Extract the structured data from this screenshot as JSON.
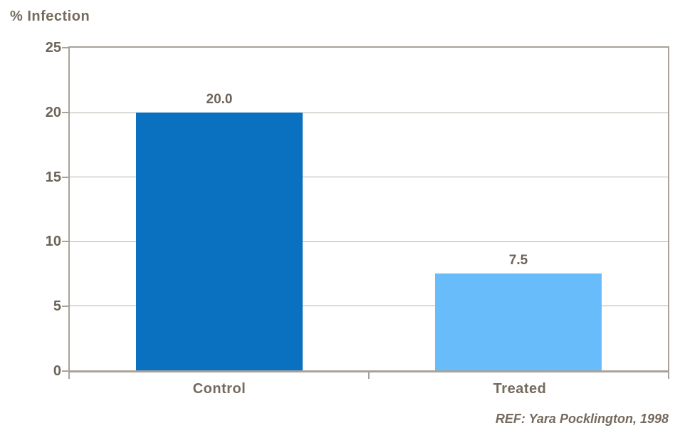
{
  "title": "% Infection",
  "footer": {
    "ref_label": "REF: Yara Pocklington, 1998"
  },
  "chart_data": {
    "type": "bar",
    "title": "% Infection",
    "categories": [
      "Control",
      "Treated"
    ],
    "values": [
      20.0,
      7.5
    ],
    "value_labels": [
      "20.0",
      "7.5"
    ],
    "xlabel": "",
    "ylabel": "% Infection",
    "ylim": [
      0,
      25
    ],
    "yticks": [
      0,
      5,
      10,
      15,
      20,
      25
    ],
    "grid": true,
    "legend": false,
    "bar_colors": [
      "#0a71c0",
      "#67bcf9"
    ],
    "text_color": "#6e6358",
    "axis_color": "#a9a29a",
    "gridline_color": "#b7b0a7"
  }
}
